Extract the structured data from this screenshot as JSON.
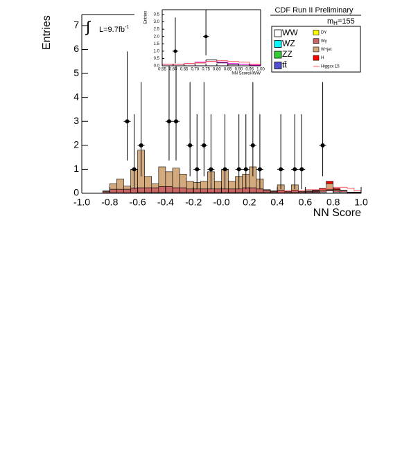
{
  "chart_data": [
    {
      "type": "histogram",
      "title": "CDF Run II Preliminary",
      "mass_label": {
        "main": "m",
        "sub": "H",
        "rest": "=155"
      },
      "lumi_symbol": "∫",
      "lumi_label": {
        "main": "L=9.7fb",
        "sup": "-1"
      },
      "x_label": "NN Score",
      "y_label": "Entries",
      "xlim": [
        -1.0,
        1.0
      ],
      "ylim": [
        0,
        7.46
      ],
      "xticks": [
        {
          "value": -1.0,
          "label": "-1.0"
        },
        {
          "value": -0.8,
          "label": "-0.8"
        },
        {
          "value": -0.6,
          "label": "-0.6"
        },
        {
          "value": -0.4,
          "label": "-0.4"
        },
        {
          "value": -0.2,
          "label": "-0.2"
        },
        {
          "value": 0,
          "label": "-0.0"
        },
        {
          "value": 0.2,
          "label": "0.2"
        },
        {
          "value": 0.4,
          "label": "0.4"
        },
        {
          "value": 0.6,
          "label": "0.6"
        },
        {
          "value": 0.8,
          "label": "0.8"
        },
        {
          "value": 1.0,
          "label": "1.0"
        }
      ],
      "yticks": [
        0,
        1,
        2,
        3,
        4,
        5,
        6,
        7
      ],
      "grid": false,
      "bins": [
        -1.0,
        -0.95,
        -0.9,
        -0.85,
        -0.8,
        -0.75,
        -0.7,
        -0.65,
        -0.6,
        -0.55,
        -0.5,
        -0.45,
        -0.4,
        -0.35,
        -0.3,
        -0.25,
        -0.2,
        -0.15,
        -0.1,
        -0.05,
        0,
        0.05,
        0.1,
        0.15,
        0.2,
        0.25,
        0.3,
        0.35,
        0.4,
        0.45,
        0.5,
        0.55,
        0.6,
        0.65,
        0.7,
        0.75,
        0.8,
        0.85,
        0.9,
        0.95,
        1.0
      ],
      "series": [
        {
          "name": "WW",
          "color": "#ffffff",
          "values": [
            0,
            0,
            0,
            0.02,
            0.02,
            0.02,
            0.02,
            0.02,
            0.03,
            0.03,
            0.03,
            0.03,
            0.03,
            0.03,
            0.03,
            0.03,
            0.03,
            0.03,
            0.03,
            0.03,
            0.03,
            0.03,
            0.03,
            0.03,
            0.03,
            0.03,
            0.03,
            0.03,
            0.03,
            0.03,
            0.03,
            0.03,
            0.03,
            0.03,
            0.05,
            0.1,
            0.05,
            0.05,
            0.03,
            0.03
          ]
        },
        {
          "name": "WZ",
          "color": "#00ffff",
          "values": [
            0,
            0,
            0,
            0,
            0,
            0,
            0,
            0,
            0,
            0,
            0,
            0,
            0,
            0,
            0,
            0,
            0,
            0,
            0,
            0,
            0,
            0,
            0,
            0,
            0,
            0,
            0,
            0,
            0,
            0,
            0,
            0,
            0,
            0,
            0,
            0,
            0,
            0,
            0,
            0
          ]
        },
        {
          "name": "ZZ",
          "color": "#33cc33",
          "values": [
            0,
            0,
            0,
            0,
            0,
            0,
            0,
            0,
            0,
            0,
            0,
            0,
            0,
            0,
            0,
            0,
            0,
            0,
            0,
            0,
            0,
            0,
            0,
            0,
            0,
            0,
            0,
            0,
            0,
            0,
            0,
            0,
            0,
            0,
            0,
            0,
            0,
            0,
            0,
            0
          ]
        },
        {
          "name": "tt̄",
          "color": "#5050d0",
          "values": [
            0,
            0,
            0,
            0,
            0,
            0,
            0,
            0,
            0,
            0,
            0,
            0,
            0,
            0,
            0,
            0,
            0,
            0,
            0,
            0,
            0,
            0,
            0,
            0,
            0,
            0,
            0,
            0,
            0,
            0,
            0,
            0,
            0,
            0,
            0,
            0,
            0,
            0,
            0,
            0
          ]
        },
        {
          "name": "DY",
          "color": "#ffff00",
          "values": [
            0,
            0,
            0,
            0,
            0,
            0,
            0,
            0,
            0,
            0,
            0,
            0,
            0,
            0,
            0,
            0,
            0,
            0,
            0,
            0,
            0,
            0,
            0,
            0,
            0,
            0,
            0,
            0,
            0,
            0,
            0,
            0,
            0,
            0,
            0,
            0,
            0,
            0,
            0,
            0
          ]
        },
        {
          "name": "Wγ",
          "color": "#c86464",
          "values": [
            0,
            0,
            0,
            0.05,
            0.15,
            0.15,
            0.15,
            0.2,
            0.2,
            0.2,
            0.2,
            0.25,
            0.25,
            0.2,
            0.2,
            0.15,
            0.15,
            0.15,
            0.15,
            0.15,
            0.15,
            0.15,
            0.15,
            0.2,
            0.2,
            0.15,
            0.1,
            0.05,
            0.1,
            0.05,
            0.1,
            0.05,
            0.05,
            0.05,
            0.05,
            0.05,
            0.05,
            0.05,
            0.02,
            0.02
          ]
        },
        {
          "name": "W+jet",
          "color": "#d2aa7d",
          "values": [
            0,
            0,
            0,
            0.03,
            0.23,
            0.43,
            0.13,
            0.78,
            1.57,
            0.47,
            0.17,
            0.82,
            0.62,
            0.82,
            0.57,
            0.32,
            0.27,
            0.32,
            0.72,
            0.32,
            0.82,
            0.32,
            0.52,
            0.57,
            0.87,
            0.42,
            0.02,
            0.02,
            0.22,
            0.02,
            0.22,
            0.02,
            0.02,
            0.02,
            0.05,
            0.25,
            0.05,
            0,
            0,
            0
          ]
        },
        {
          "name": "H",
          "color": "#ff0000",
          "values": [
            0,
            0,
            0,
            0,
            0,
            0,
            0,
            0,
            0,
            0,
            0,
            0,
            0,
            0,
            0,
            0,
            0,
            0,
            0,
            0,
            0,
            0,
            0,
            0,
            0,
            0,
            0,
            0,
            0,
            0,
            0,
            0,
            0,
            0.02,
            0.05,
            0.1,
            0.05,
            0.02,
            0,
            0
          ]
        },
        {
          "name": "Higgsx 15",
          "color": "#ff5a5a",
          "line": true,
          "values": [
            0,
            0,
            0,
            0,
            0,
            0,
            0,
            0,
            0,
            0,
            0,
            0,
            0,
            0,
            0,
            0,
            0,
            0,
            0,
            0,
            0,
            0,
            0,
            0,
            0,
            0,
            0,
            0,
            0.05,
            0.1,
            0.1,
            0.1,
            0.15,
            0.15,
            0.15,
            0.2,
            0.25,
            0.25,
            0.2,
            0.1
          ]
        }
      ],
      "points": {
        "x": [
          -0.675,
          -0.625,
          -0.575,
          -0.375,
          -0.325,
          -0.225,
          -0.175,
          -0.125,
          -0.075,
          0.025,
          0.125,
          0.175,
          0.225,
          0.275,
          0.425,
          0.525,
          0.575,
          0.725
        ],
        "values": [
          3,
          1,
          2,
          3,
          3,
          2,
          1,
          2,
          1,
          1,
          1,
          1,
          2,
          1,
          1,
          1,
          1,
          2
        ],
        "yerr_low": [
          1.63,
          0.83,
          1.29,
          1.63,
          1.63,
          1.29,
          0.83,
          1.29,
          0.83,
          0.83,
          0.83,
          0.83,
          1.29,
          0.83,
          0.83,
          0.83,
          0.83,
          1.29
        ],
        "yerr_high": [
          2.92,
          2.3,
          2.64,
          2.92,
          2.92,
          2.64,
          2.3,
          2.64,
          2.3,
          2.3,
          2.3,
          2.3,
          2.64,
          2.3,
          2.3,
          2.3,
          2.3,
          2.64
        ]
      }
    },
    {
      "type": "histogram",
      "x_label": "NN ScoreHWW",
      "y_label": "Entries",
      "xlim": [
        0.55,
        1.0
      ],
      "ylim": [
        0,
        3.83
      ],
      "xticks": [
        {
          "value": 0.55,
          "label": "0.55"
        },
        {
          "value": 0.6,
          "label": "0.60"
        },
        {
          "value": 0.65,
          "label": "0.65"
        },
        {
          "value": 0.7,
          "label": "0.70"
        },
        {
          "value": 0.75,
          "label": "0.75"
        },
        {
          "value": 0.8,
          "label": "0.80"
        },
        {
          "value": 0.85,
          "label": "0.85"
        },
        {
          "value": 0.9,
          "label": "0.90"
        },
        {
          "value": 0.95,
          "label": "0.95"
        },
        {
          "value": 1.0,
          "label": "1.00"
        }
      ],
      "yticks": [
        {
          "value": 0,
          "label": "0.0"
        },
        0.5,
        {
          "value": 1,
          "label": "1.0"
        },
        1.5,
        {
          "value": 2,
          "label": "2.0"
        },
        2.5,
        {
          "value": 3,
          "label": "3.0"
        },
        3.5
      ],
      "grid": false,
      "bins": [
        0.55,
        0.6,
        0.65,
        0.7,
        0.75,
        0.8,
        0.85,
        0.9,
        0.95,
        1.0
      ],
      "series": [
        {
          "color": "#000000",
          "line": true,
          "values": [
            0.1,
            0.1,
            0.15,
            0.2,
            0.4,
            0.2,
            0.1,
            0.1,
            0.05
          ]
        },
        {
          "color": "#ff00ff",
          "line": true,
          "values": [
            0.1,
            0.1,
            0.15,
            0.25,
            0.3,
            0.25,
            0.15,
            0.1,
            0.05
          ]
        },
        {
          "color": "#ff5a5a",
          "line": true,
          "values": [
            0.1,
            0.1,
            0.15,
            0.2,
            0.3,
            0.35,
            0.3,
            0.25,
            0.1
          ]
        }
      ],
      "points": {
        "x": [
          0.61,
          0.75
        ],
        "values": [
          1,
          2
        ],
        "yerr_low": [
          0.83,
          1.29
        ],
        "yerr_high": [
          2.3,
          2.64
        ]
      }
    }
  ]
}
